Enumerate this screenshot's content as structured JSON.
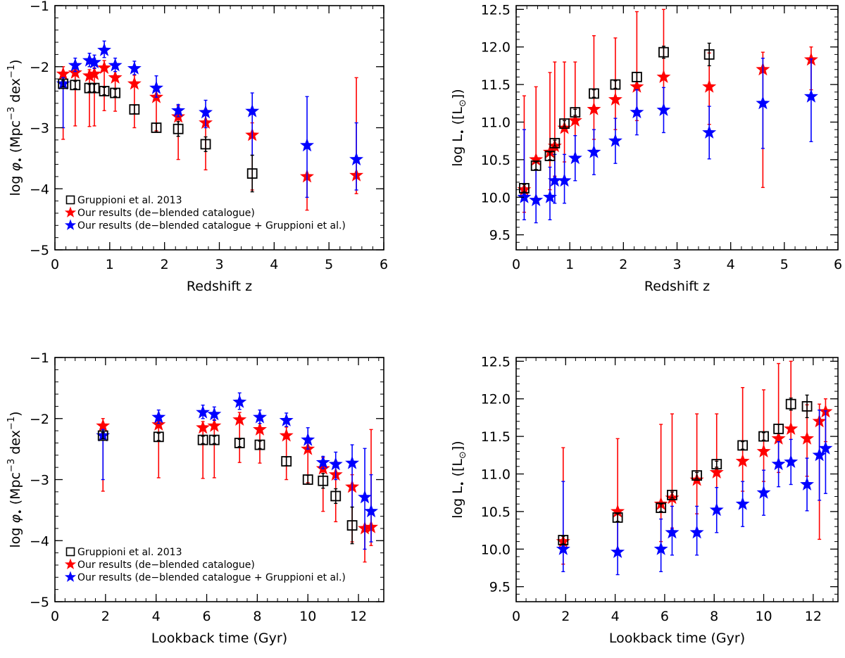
{
  "colors": {
    "gruppioni": "#000000",
    "deblended": "#ff0000",
    "combined": "#0000ff"
  },
  "chart_data": [
    {
      "type": "scatter",
      "id": "phi-vs-z",
      "xlabel": "Redshift z",
      "ylabel_parts": [
        "log ",
        "φ",
        "•",
        " (Mpc",
        "−3",
        " dex",
        "−1",
        ")"
      ],
      "xlim": [
        0,
        6
      ],
      "ylim": [
        -5,
        -1
      ],
      "xticks": [
        "0",
        "1",
        "2",
        "3",
        "4",
        "5",
        "6"
      ],
      "yticks": [
        "−5",
        "−4",
        "−3",
        "−2",
        "−1"
      ],
      "legend": {
        "position": "bottom-left",
        "entries": [
          {
            "series": "gruppioni",
            "label": "Gruppioni et al. 2013"
          },
          {
            "series": "deblended",
            "label": "Our results (de−blended catalogue)"
          },
          {
            "series": "combined",
            "label": "Our results (de−blended catalogue + Gruppioni et al.)"
          }
        ]
      },
      "series": [
        {
          "name": "Gruppioni et al. 2013",
          "key": "gruppioni",
          "marker": "square",
          "x": [
            0.15,
            0.37,
            0.63,
            0.72,
            0.9,
            1.1,
            1.45,
            1.85,
            2.25,
            2.75,
            3.6
          ],
          "y": [
            -2.28,
            -2.3,
            -2.35,
            -2.35,
            -2.4,
            -2.43,
            -2.7,
            -3.0,
            -3.02,
            -3.27,
            -3.75
          ],
          "yerr_low": [
            0.05,
            0.06,
            0.06,
            0.06,
            0.06,
            0.06,
            0.07,
            0.07,
            0.12,
            0.12,
            0.3
          ],
          "yerr_high": [
            0.05,
            0.06,
            0.06,
            0.06,
            0.06,
            0.06,
            0.07,
            0.07,
            0.12,
            0.12,
            0.3
          ]
        },
        {
          "name": "Our results (de−blended catalogue)",
          "key": "deblended",
          "marker": "star",
          "x": [
            0.15,
            0.37,
            0.63,
            0.72,
            0.9,
            1.1,
            1.45,
            1.85,
            2.25,
            2.75,
            3.6,
            4.6,
            5.5
          ],
          "y": [
            -2.12,
            -2.1,
            -2.15,
            -2.12,
            -2.02,
            -2.18,
            -2.28,
            -2.5,
            -2.82,
            -2.92,
            -3.12,
            -3.8,
            -3.78
          ],
          "yerr_low": [
            1.07,
            0.87,
            0.83,
            0.85,
            0.7,
            0.55,
            0.72,
            0.55,
            0.7,
            0.77,
            0.9,
            0.55,
            0.3
          ],
          "yerr_high": [
            0.12,
            0.12,
            0.1,
            0.1,
            0.12,
            0.1,
            0.14,
            0.15,
            0.18,
            0.22,
            0.2,
            0.0,
            1.6
          ]
        },
        {
          "name": "Our results (de−blended catalogue + Gruppioni et al.)",
          "key": "combined",
          "marker": "star",
          "x": [
            0.15,
            0.37,
            0.63,
            0.72,
            0.9,
            1.1,
            1.45,
            1.85,
            2.25,
            2.75,
            3.6,
            4.6,
            5.5
          ],
          "y": [
            -2.28,
            -1.98,
            -1.9,
            -1.93,
            -1.73,
            -1.98,
            -2.03,
            -2.35,
            -2.72,
            -2.75,
            -2.73,
            -3.29,
            -3.52
          ],
          "yerr_low": [
            0.72,
            0.1,
            0.1,
            0.1,
            0.12,
            0.1,
            0.1,
            0.15,
            0.1,
            0.25,
            0.72,
            0.85,
            0.5
          ],
          "yerr_high": [
            0.1,
            0.12,
            0.12,
            0.12,
            0.15,
            0.12,
            0.12,
            0.2,
            0.1,
            0.2,
            0.3,
            0.8,
            0.6
          ]
        }
      ]
    },
    {
      "type": "scatter",
      "id": "L-vs-z",
      "xlabel": "Redshift z",
      "ylabel_parts": [
        "log L",
        "•",
        " ([L",
        "⊙",
        "])"
      ],
      "xlim": [
        0,
        6
      ],
      "ylim": [
        9.3,
        12.55
      ],
      "xticks": [
        "0",
        "1",
        "2",
        "3",
        "4",
        "5",
        "6"
      ],
      "yticks": [
        "9.5",
        "10.0",
        "10.5",
        "11.0",
        "11.5",
        "12.0",
        "12.5"
      ],
      "series": [
        {
          "name": "Gruppioni et al. 2013",
          "key": "gruppioni",
          "marker": "square",
          "x": [
            0.15,
            0.37,
            0.63,
            0.72,
            0.9,
            1.1,
            1.45,
            1.85,
            2.25,
            2.75,
            3.6
          ],
          "y": [
            10.12,
            10.42,
            10.55,
            10.72,
            10.98,
            11.13,
            11.38,
            11.5,
            11.6,
            11.93,
            11.9
          ],
          "yerr_low": [
            0.05,
            0.05,
            0.05,
            0.04,
            0.04,
            0.04,
            0.05,
            0.05,
            0.06,
            0.08,
            0.15
          ],
          "yerr_high": [
            0.05,
            0.05,
            0.05,
            0.04,
            0.04,
            0.04,
            0.05,
            0.05,
            0.06,
            0.08,
            0.15
          ]
        },
        {
          "name": "Our results (de−blended catalogue)",
          "key": "deblended",
          "marker": "star",
          "x": [
            0.15,
            0.37,
            0.63,
            0.72,
            0.9,
            1.1,
            1.45,
            1.85,
            2.25,
            2.75,
            3.6,
            4.6,
            5.5
          ],
          "y": [
            10.1,
            10.5,
            10.6,
            10.68,
            10.92,
            11.02,
            11.17,
            11.3,
            11.47,
            11.6,
            11.47,
            11.7,
            11.83
          ],
          "yerr_low": [
            0.3,
            0.5,
            0.5,
            0.4,
            0.45,
            0.5,
            0.4,
            0.4,
            0.45,
            0.45,
            0.5,
            1.57,
            0.4
          ],
          "yerr_high": [
            1.25,
            0.97,
            1.06,
            1.12,
            0.88,
            0.78,
            0.98,
            0.82,
            1.0,
            0.9,
            0.45,
            0.23,
            0.17
          ]
        },
        {
          "name": "Our results (de−blended catalogue + Gruppioni et al.)",
          "key": "combined",
          "marker": "star",
          "x": [
            0.15,
            0.37,
            0.63,
            0.72,
            0.9,
            1.1,
            1.45,
            1.85,
            2.25,
            2.75,
            3.6,
            4.6,
            5.5
          ],
          "y": [
            10.0,
            9.96,
            10.0,
            10.22,
            10.22,
            10.52,
            10.6,
            10.75,
            11.13,
            11.16,
            10.86,
            11.25,
            11.34
          ],
          "yerr_low": [
            0.3,
            0.3,
            0.3,
            0.3,
            0.3,
            0.3,
            0.3,
            0.3,
            0.3,
            0.3,
            0.35,
            0.6,
            0.6
          ],
          "yerr_high": [
            0.9,
            0.4,
            0.4,
            0.35,
            0.35,
            0.3,
            0.3,
            0.3,
            0.3,
            0.3,
            0.35,
            0.6,
            0.5
          ]
        }
      ]
    },
    {
      "type": "scatter",
      "id": "phi-vs-t",
      "xlabel": "Lookback time (Gyr)",
      "ylabel_parts": [
        "log ",
        "φ",
        "•",
        " (Mpc",
        "−3",
        " dex",
        "−1",
        ")"
      ],
      "xlim": [
        0,
        13
      ],
      "ylim": [
        -5,
        -1
      ],
      "xticks": [
        "0",
        "2",
        "4",
        "6",
        "8",
        "10",
        "12"
      ],
      "yticks": [
        "−5",
        "−4",
        "−3",
        "−2",
        "−1"
      ],
      "legend": {
        "position": "bottom-left",
        "entries": [
          {
            "series": "gruppioni",
            "label": "Gruppioni et al. 2013"
          },
          {
            "series": "deblended",
            "label": "Our results (de−blended catalogue)"
          },
          {
            "series": "combined",
            "label": "Our results (de−blended catalogue + Gruppioni et al.)"
          }
        ]
      },
      "series": [
        {
          "name": "Gruppioni et al. 2013",
          "key": "gruppioni",
          "marker": "square",
          "x": [
            1.9,
            4.1,
            5.85,
            6.3,
            7.3,
            8.1,
            9.15,
            10.0,
            10.6,
            11.1,
            11.75
          ],
          "y": [
            -2.28,
            -2.3,
            -2.35,
            -2.35,
            -2.4,
            -2.43,
            -2.7,
            -3.0,
            -3.02,
            -3.27,
            -3.75
          ],
          "yerr_low": [
            0.05,
            0.06,
            0.06,
            0.06,
            0.06,
            0.06,
            0.07,
            0.07,
            0.12,
            0.12,
            0.3
          ],
          "yerr_high": [
            0.05,
            0.06,
            0.06,
            0.06,
            0.06,
            0.06,
            0.07,
            0.07,
            0.12,
            0.12,
            0.3
          ]
        },
        {
          "name": "Our results (de−blended catalogue)",
          "key": "deblended",
          "marker": "star",
          "x": [
            1.9,
            4.1,
            5.85,
            6.3,
            7.3,
            8.1,
            9.15,
            10.0,
            10.6,
            11.1,
            11.75,
            12.25,
            12.5
          ],
          "y": [
            -2.12,
            -2.1,
            -2.15,
            -2.12,
            -2.02,
            -2.18,
            -2.28,
            -2.5,
            -2.82,
            -2.92,
            -3.12,
            -3.8,
            -3.78
          ],
          "yerr_low": [
            1.07,
            0.87,
            0.83,
            0.85,
            0.7,
            0.55,
            0.72,
            0.55,
            0.7,
            0.77,
            0.9,
            0.55,
            0.3
          ],
          "yerr_high": [
            0.12,
            0.12,
            0.1,
            0.1,
            0.12,
            0.1,
            0.14,
            0.15,
            0.18,
            0.22,
            0.2,
            0.0,
            1.6
          ]
        },
        {
          "name": "Our results (de−blended catalogue + Gruppioni et al.)",
          "key": "combined",
          "marker": "star",
          "x": [
            1.9,
            4.1,
            5.85,
            6.3,
            7.3,
            8.1,
            9.15,
            10.0,
            10.6,
            11.1,
            11.75,
            12.25,
            12.5
          ],
          "y": [
            -2.28,
            -1.98,
            -1.9,
            -1.93,
            -1.73,
            -1.98,
            -2.03,
            -2.35,
            -2.72,
            -2.75,
            -2.73,
            -3.29,
            -3.52
          ],
          "yerr_low": [
            0.72,
            0.1,
            0.1,
            0.1,
            0.12,
            0.1,
            0.1,
            0.15,
            0.1,
            0.25,
            0.72,
            0.85,
            0.5
          ],
          "yerr_high": [
            0.1,
            0.12,
            0.12,
            0.12,
            0.15,
            0.12,
            0.12,
            0.2,
            0.1,
            0.2,
            0.3,
            0.8,
            0.6
          ]
        }
      ]
    },
    {
      "type": "scatter",
      "id": "L-vs-t",
      "xlabel": "Lookback time (Gyr)",
      "ylabel_parts": [
        "log L",
        "•",
        " ([L",
        "⊙",
        "])"
      ],
      "xlim": [
        0,
        13
      ],
      "ylim": [
        9.3,
        12.55
      ],
      "xticks": [
        "0",
        "2",
        "4",
        "6",
        "8",
        "10",
        "12"
      ],
      "yticks": [
        "9.5",
        "10.0",
        "10.5",
        "11.0",
        "11.5",
        "12.0",
        "12.5"
      ],
      "series": [
        {
          "name": "Gruppioni et al. 2013",
          "key": "gruppioni",
          "marker": "square",
          "x": [
            1.9,
            4.1,
            5.85,
            6.3,
            7.3,
            8.1,
            9.15,
            10.0,
            10.6,
            11.1,
            11.75
          ],
          "y": [
            10.12,
            10.42,
            10.55,
            10.72,
            10.98,
            11.13,
            11.38,
            11.5,
            11.6,
            11.93,
            11.9
          ],
          "yerr_low": [
            0.05,
            0.05,
            0.05,
            0.04,
            0.04,
            0.04,
            0.05,
            0.05,
            0.06,
            0.08,
            0.15
          ],
          "yerr_high": [
            0.05,
            0.05,
            0.05,
            0.04,
            0.04,
            0.04,
            0.05,
            0.05,
            0.06,
            0.08,
            0.15
          ]
        },
        {
          "name": "Our results (de−blended catalogue)",
          "key": "deblended",
          "marker": "star",
          "x": [
            1.9,
            4.1,
            5.85,
            6.3,
            7.3,
            8.1,
            9.15,
            10.0,
            10.6,
            11.1,
            11.75,
            12.25,
            12.5
          ],
          "y": [
            10.1,
            10.5,
            10.6,
            10.68,
            10.92,
            11.02,
            11.17,
            11.3,
            11.47,
            11.6,
            11.47,
            11.7,
            11.83
          ],
          "yerr_low": [
            0.3,
            0.5,
            0.5,
            0.4,
            0.45,
            0.5,
            0.4,
            0.4,
            0.45,
            0.45,
            0.5,
            1.57,
            0.4
          ],
          "yerr_high": [
            1.25,
            0.97,
            1.06,
            1.12,
            0.88,
            0.78,
            0.98,
            0.82,
            1.0,
            0.9,
            0.45,
            0.23,
            0.17
          ]
        },
        {
          "name": "Our results (de−blended catalogue + Gruppioni et al.)",
          "key": "combined",
          "marker": "star",
          "x": [
            1.9,
            4.1,
            5.85,
            6.3,
            7.3,
            8.1,
            9.15,
            10.0,
            10.6,
            11.1,
            11.75,
            12.25,
            12.5
          ],
          "y": [
            10.0,
            9.96,
            10.0,
            10.22,
            10.22,
            10.52,
            10.6,
            10.75,
            11.13,
            11.16,
            10.86,
            11.25,
            11.34
          ],
          "yerr_low": [
            0.3,
            0.3,
            0.3,
            0.3,
            0.3,
            0.3,
            0.3,
            0.3,
            0.3,
            0.3,
            0.35,
            0.6,
            0.6
          ],
          "yerr_high": [
            0.9,
            0.4,
            0.4,
            0.35,
            0.35,
            0.3,
            0.3,
            0.3,
            0.3,
            0.3,
            0.35,
            0.6,
            0.5
          ]
        }
      ]
    }
  ]
}
